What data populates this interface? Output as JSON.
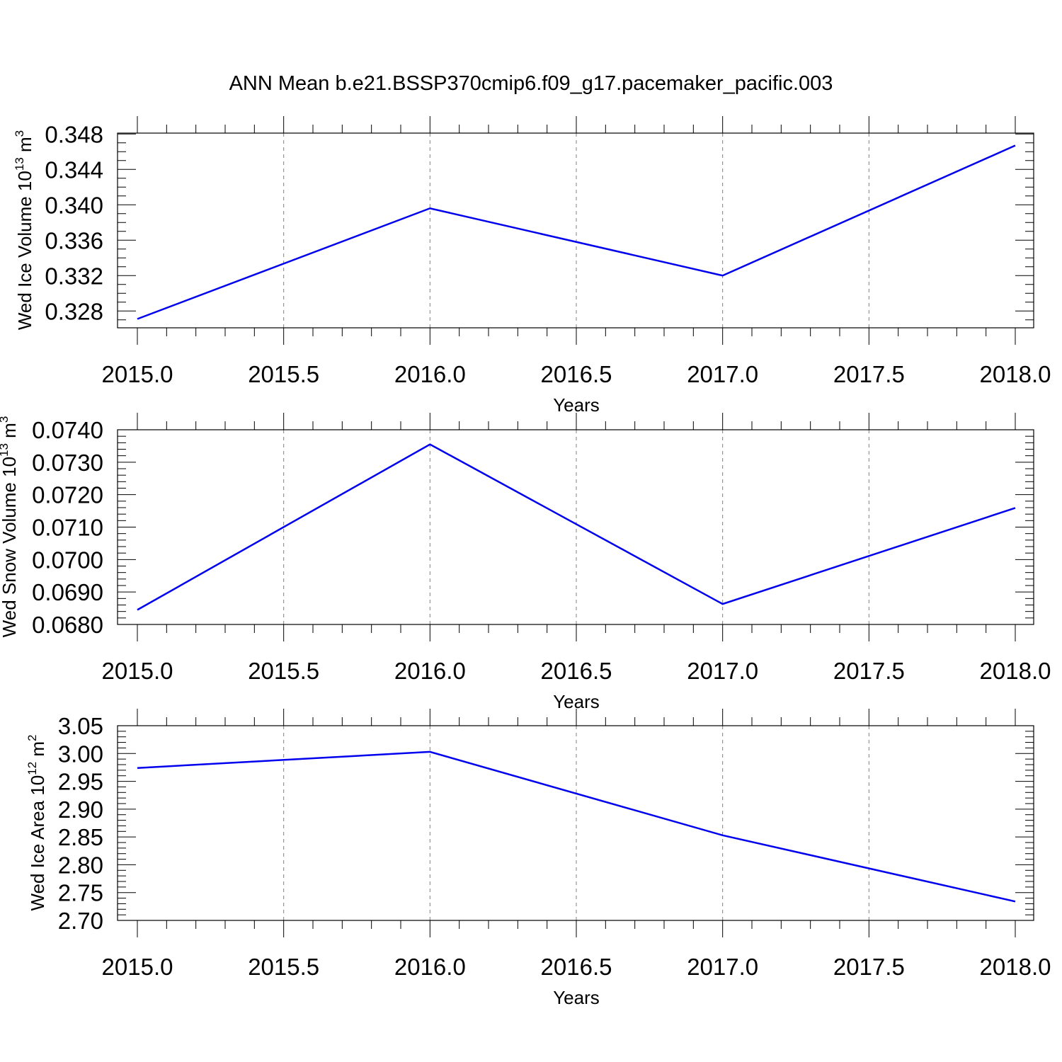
{
  "title": "ANN Mean b.e21.BSSP370cmip6.f09_g17.pacemaker_pacific.003",
  "chart_data": [
    {
      "type": "line",
      "ylabel_main": "Wed Ice Volume 10",
      "ylabel_sup": "13",
      "ylabel_unit": " m",
      "ylabel_unit_sup": "3",
      "xlabel": "Years",
      "x": [
        2015,
        2016,
        2017,
        2018
      ],
      "xlim": [
        2015.0,
        2018.0
      ],
      "xticks": [
        "2015.0",
        "2015.5",
        "2016.0",
        "2016.5",
        "2017.0",
        "2017.5",
        "2018.0"
      ],
      "ylim": [
        0.3261,
        0.3481
      ],
      "yticks": [
        "0.328",
        "0.332",
        "0.336",
        "0.340",
        "0.344",
        "0.348"
      ],
      "series": [
        {
          "values": [
            0.3271,
            0.3396,
            0.332,
            0.3467
          ],
          "color": "#0000ee"
        }
      ],
      "grid": "vertical-dashed"
    },
    {
      "type": "line",
      "ylabel_main": "Wed Snow Volume 10",
      "ylabel_sup": "13",
      "ylabel_unit": " m",
      "ylabel_unit_sup": "3",
      "xlabel": "Years",
      "x": [
        2015,
        2016,
        2017,
        2018
      ],
      "xlim": [
        2015.0,
        2018.0
      ],
      "xticks": [
        "2015.0",
        "2015.5",
        "2016.0",
        "2016.5",
        "2017.0",
        "2017.5",
        "2018.0"
      ],
      "ylim": [
        0.068,
        0.074
      ],
      "yticks": [
        "0.0680",
        "0.0690",
        "0.0700",
        "0.0710",
        "0.0720",
        "0.0730",
        "0.0740"
      ],
      "series": [
        {
          "values": [
            0.06845,
            0.07355,
            0.06863,
            0.07159
          ],
          "color": "#0000ee"
        }
      ],
      "grid": "vertical-dashed"
    },
    {
      "type": "line",
      "ylabel_main": "Wed Ice Area 10",
      "ylabel_sup": "12",
      "ylabel_unit": " m",
      "ylabel_unit_sup": "2",
      "xlabel": "Years",
      "x": [
        2015,
        2016,
        2017,
        2018
      ],
      "xlim": [
        2015.0,
        2018.0
      ],
      "xticks": [
        "2015.0",
        "2015.5",
        "2016.0",
        "2016.5",
        "2017.0",
        "2017.5",
        "2018.0"
      ],
      "ylim": [
        2.7,
        3.05
      ],
      "yticks": [
        "2.70",
        "2.75",
        "2.80",
        "2.85",
        "2.90",
        "2.95",
        "3.00",
        "3.05"
      ],
      "series": [
        {
          "values": [
            2.974,
            3.003,
            2.853,
            2.734
          ],
          "color": "#0000ee"
        }
      ],
      "grid": "vertical-dashed"
    }
  ]
}
